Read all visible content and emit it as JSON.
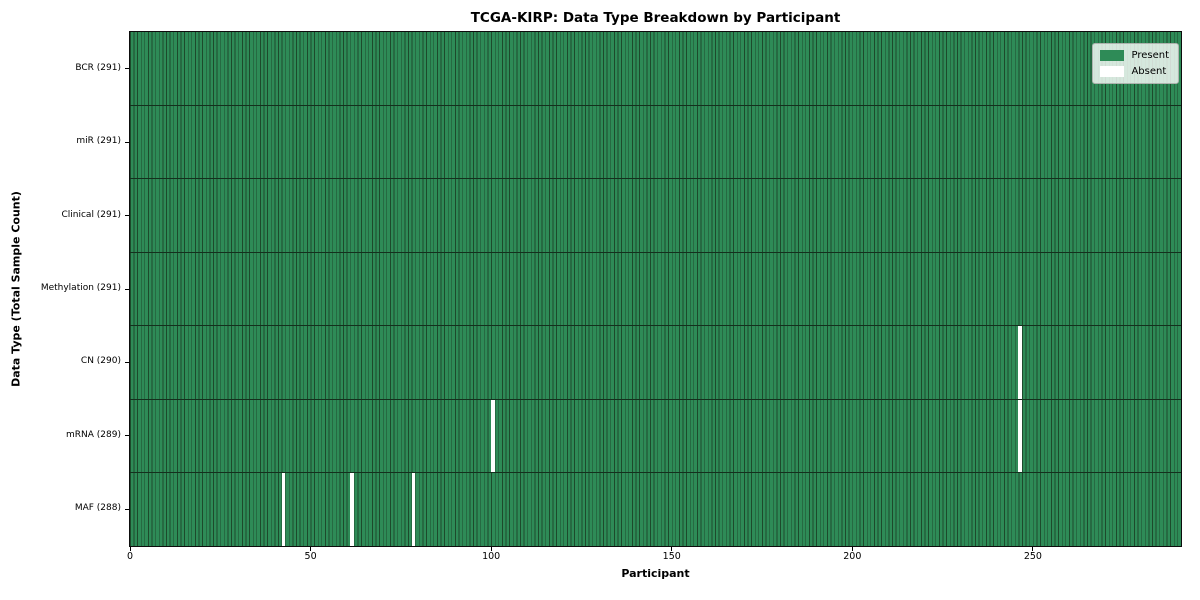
{
  "chart_data": {
    "type": "heatmap",
    "title": "TCGA-KIRP: Data Type Breakdown by Participant",
    "xlabel": "Participant",
    "ylabel": "Data Type (Total Sample Count)",
    "n_participants": 291,
    "xlim": [
      0,
      291
    ],
    "x_ticks": [
      0,
      50,
      100,
      150,
      200,
      250
    ],
    "grid": "row-dividers-only",
    "legend": {
      "position": "upper-right",
      "entries": [
        {
          "name": "present",
          "label": "Present",
          "color": "#2E8B57"
        },
        {
          "name": "absent",
          "label": "Absent",
          "color": "#FFFFFF"
        }
      ]
    },
    "rows": [
      {
        "data_type": "BCR",
        "label": "BCR (291)",
        "total": 291,
        "absent_participants": []
      },
      {
        "data_type": "miR",
        "label": "miR (291)",
        "total": 291,
        "absent_participants": []
      },
      {
        "data_type": "Clinical",
        "label": "Clinical (291)",
        "total": 291,
        "absent_participants": []
      },
      {
        "data_type": "Methylation",
        "label": "Methylation (291)",
        "total": 291,
        "absent_participants": []
      },
      {
        "data_type": "CN",
        "label": "CN (290)",
        "total": 290,
        "absent_participants": [
          246
        ]
      },
      {
        "data_type": "mRNA",
        "label": "mRNA (289)",
        "total": 289,
        "absent_participants": [
          100,
          246
        ]
      },
      {
        "data_type": "MAF",
        "label": "MAF (288)",
        "total": 288,
        "absent_participants": [
          42,
          61,
          78
        ]
      }
    ],
    "colors": {
      "present": "#2E8B57",
      "absent": "#FFFFFF",
      "bar_edge": "#1d4a2c",
      "row_divider": "#14301d",
      "spine": "#0d0d0d",
      "text": "#000000",
      "figure_background": "#FFFFFF"
    }
  }
}
